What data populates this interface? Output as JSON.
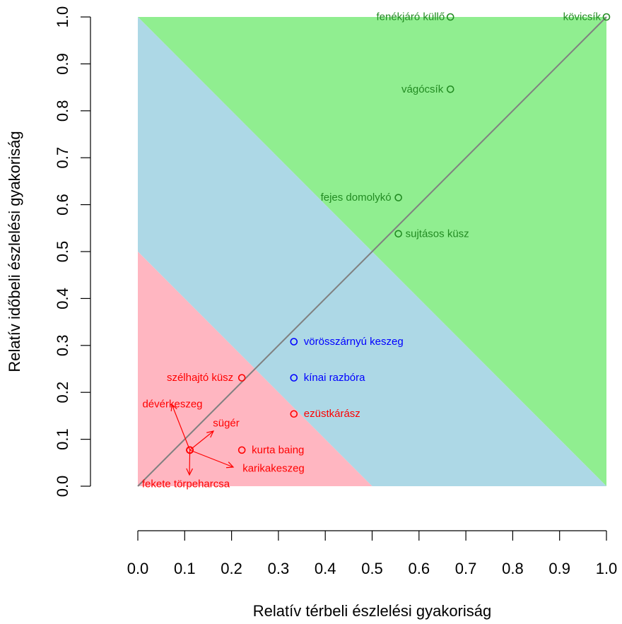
{
  "chart_data": {
    "type": "scatter",
    "xlabel": "Relatív térbeli észlelési gyakoriság",
    "ylabel": "Relatív időbeli észlelési gyakoriság",
    "xlim": [
      0,
      1
    ],
    "ylim": [
      0,
      1
    ],
    "xticks": [
      "0.0",
      "0.1",
      "0.2",
      "0.3",
      "0.4",
      "0.5",
      "0.6",
      "0.7",
      "0.8",
      "0.9",
      "1.0"
    ],
    "yticks": [
      "0.0",
      "0.1",
      "0.2",
      "0.3",
      "0.4",
      "0.5",
      "0.6",
      "0.7",
      "0.8",
      "0.9",
      "1.0"
    ],
    "grid": false,
    "regions": [
      {
        "color": "#90EE90",
        "polygon": [
          [
            0,
            1
          ],
          [
            1,
            1
          ],
          [
            1,
            0
          ]
        ]
      },
      {
        "color": "#ADD8E6",
        "polygon": [
          [
            0,
            0.5
          ],
          [
            0,
            1
          ],
          [
            1,
            0
          ],
          [
            0.5,
            0
          ]
        ]
      },
      {
        "color": "#FFB6C1",
        "polygon": [
          [
            0,
            0
          ],
          [
            0,
            0.5
          ],
          [
            0.5,
            0
          ]
        ]
      }
    ],
    "reference_line": {
      "color": "#808080",
      "from": [
        0,
        0
      ],
      "to": [
        1,
        1
      ]
    },
    "colors": {
      "green": "#228B22",
      "blue": "#0000FF",
      "red": "#FF0000"
    },
    "points": [
      {
        "label": "fenékjáró küllő",
        "x": 0.667,
        "y": 1.0,
        "color": "#228B22"
      },
      {
        "label": "kövicsík",
        "x": 1.0,
        "y": 1.0,
        "color": "#228B22"
      },
      {
        "label": "vágócsík",
        "x": 0.667,
        "y": 0.846,
        "color": "#228B22"
      },
      {
        "label": "fejes domolykó",
        "x": 0.556,
        "y": 0.615,
        "color": "#228B22"
      },
      {
        "label": "sujtásos küsz",
        "x": 0.556,
        "y": 0.538,
        "color": "#228B22"
      },
      {
        "label": "vörösszárnyú keszeg",
        "x": 0.333,
        "y": 0.308,
        "color": "#0000FF"
      },
      {
        "label": "kínai razbóra",
        "x": 0.333,
        "y": 0.231,
        "color": "#0000FF"
      },
      {
        "label": "szélhajtó küsz",
        "x": 0.222,
        "y": 0.231,
        "color": "#FF0000"
      },
      {
        "label": "ezüstkárász",
        "x": 0.333,
        "y": 0.154,
        "color": "#FF0000"
      },
      {
        "label": "kurta baing",
        "x": 0.222,
        "y": 0.077,
        "color": "#FF0000"
      },
      {
        "label": "dévérkeszeg",
        "x": 0.111,
        "y": 0.077,
        "color": "#FF0000"
      },
      {
        "label": "sügér",
        "x": 0.111,
        "y": 0.077,
        "color": "#FF0000"
      },
      {
        "label": "karikakeszeg",
        "x": 0.111,
        "y": 0.077,
        "color": "#FF0000"
      },
      {
        "label": "fekete törpeharcsa",
        "x": 0.111,
        "y": 0.077,
        "color": "#FF0000"
      }
    ]
  }
}
